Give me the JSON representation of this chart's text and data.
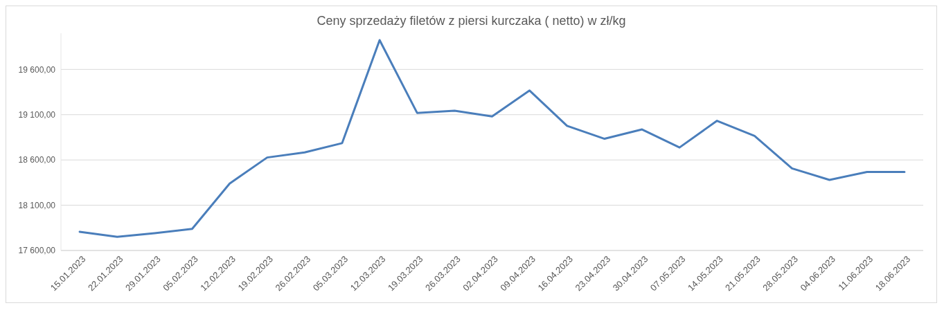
{
  "chart_data": {
    "type": "line",
    "title": "Ceny sprzedaży filetów z piersi kurczaka ( netto) w zł/kg",
    "categories": [
      "15.01.2023",
      "22.01.2023",
      "29.01.2023",
      "05.02.2023",
      "12.02.2023",
      "19.02.2023",
      "26.02.2023",
      "05.03.2023",
      "12.03.2023",
      "19.03.2023",
      "26.03.2023",
      "02.04.2023",
      "09.04.2023",
      "16.04.2023",
      "23.04.2023",
      "30.04.2023",
      "07.05.2023",
      "14.05.2023",
      "21.05.2023",
      "28.05.2023",
      "04.06.2023",
      "11.06.2023",
      "18.06.2023"
    ],
    "series": [
      {
        "color": "#4a7ebb",
        "values": [
          17807,
          17751,
          17791,
          17839,
          18340,
          18627,
          18683,
          18786,
          19924,
          19120,
          19144,
          19081,
          19367,
          18977,
          18834,
          18937,
          18738,
          19033,
          18866,
          18507,
          18380,
          18468,
          18468
        ]
      }
    ],
    "ylim": [
      17600,
      20000
    ],
    "yticks": [
      {
        "value": 17600,
        "label": "17 600,00"
      },
      {
        "value": 18100,
        "label": "18 100,00"
      },
      {
        "value": 18600,
        "label": "18 600,00"
      },
      {
        "value": 19100,
        "label": "19 100,00"
      },
      {
        "value": 19600,
        "label": "19 600,00"
      }
    ],
    "grid": "y",
    "marker": "none",
    "line_style": "solid"
  }
}
